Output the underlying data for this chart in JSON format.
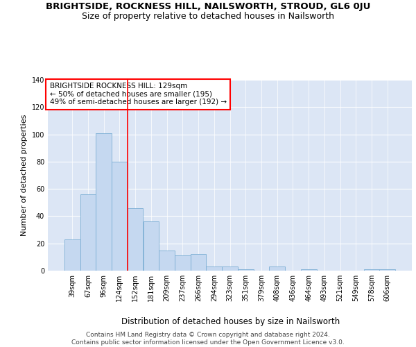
{
  "title": "BRIGHTSIDE, ROCKNESS HILL, NAILSWORTH, STROUD, GL6 0JU",
  "subtitle": "Size of property relative to detached houses in Nailsworth",
  "xlabel": "Distribution of detached houses by size in Nailsworth",
  "ylabel": "Number of detached properties",
  "bar_color": "#c5d8f0",
  "bar_edge_color": "#7aadd4",
  "background_color": "#dce6f5",
  "categories": [
    "39sqm",
    "67sqm",
    "96sqm",
    "124sqm",
    "152sqm",
    "181sqm",
    "209sqm",
    "237sqm",
    "266sqm",
    "294sqm",
    "323sqm",
    "351sqm",
    "379sqm",
    "408sqm",
    "436sqm",
    "464sqm",
    "493sqm",
    "521sqm",
    "549sqm",
    "578sqm",
    "606sqm"
  ],
  "values": [
    23,
    56,
    101,
    80,
    46,
    36,
    15,
    11,
    12,
    3,
    3,
    1,
    0,
    3,
    0,
    1,
    0,
    0,
    0,
    1,
    1
  ],
  "ylim": [
    0,
    140
  ],
  "yticks": [
    0,
    20,
    40,
    60,
    80,
    100,
    120,
    140
  ],
  "annotation_box_text": "BRIGHTSIDE ROCKNESS HILL: 129sqm\n← 50% of detached houses are smaller (195)\n49% of semi-detached houses are larger (192) →",
  "red_line_x": 3.5,
  "annotation_box_color": "white",
  "annotation_box_edge_color": "red",
  "red_line_color": "red",
  "footer_text": "Contains HM Land Registry data © Crown copyright and database right 2024.\nContains public sector information licensed under the Open Government Licence v3.0.",
  "title_fontsize": 9.5,
  "subtitle_fontsize": 9,
  "xlabel_fontsize": 8.5,
  "ylabel_fontsize": 8,
  "tick_fontsize": 7,
  "annotation_fontsize": 7.5,
  "footer_fontsize": 6.5
}
